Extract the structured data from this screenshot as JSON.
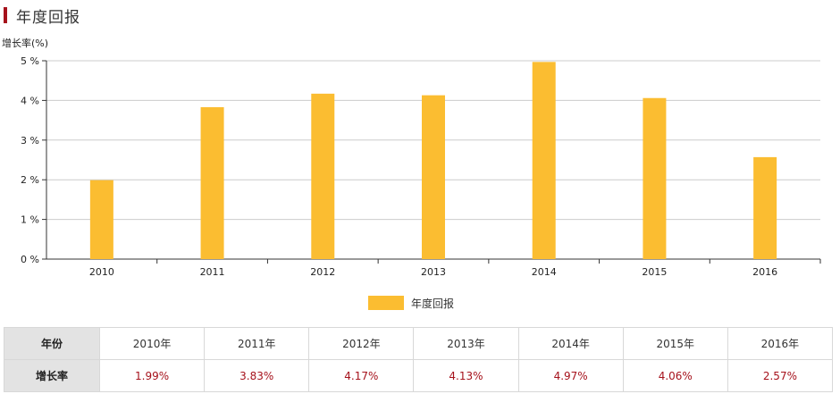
{
  "header": {
    "title": "年度回报"
  },
  "colors": {
    "accent": "#a6121c",
    "bar": "#fbbd31",
    "grid": "#cccccc"
  },
  "chart_data": {
    "type": "bar",
    "title": "年度回报",
    "ylabel": "增长率(%)",
    "xlabel": "",
    "categories": [
      "2010",
      "2011",
      "2012",
      "2013",
      "2014",
      "2015",
      "2016"
    ],
    "series": [
      {
        "name": "年度回报",
        "values": [
          1.99,
          3.83,
          4.17,
          4.13,
          4.97,
          4.06,
          2.57
        ]
      }
    ],
    "ylim": [
      0,
      5
    ],
    "yticks": [
      "0 %",
      "1 %",
      "2 %",
      "3 %",
      "4 %",
      "5 %"
    ],
    "grid": true,
    "legend_position": "bottom-center"
  },
  "table": {
    "row_headers": [
      "年份",
      "增长率"
    ],
    "years": [
      "2010年",
      "2011年",
      "2012年",
      "2013年",
      "2014年",
      "2015年",
      "2016年"
    ],
    "rates": [
      "1.99%",
      "3.83%",
      "4.17%",
      "4.13%",
      "4.97%",
      "4.06%",
      "2.57%"
    ]
  }
}
